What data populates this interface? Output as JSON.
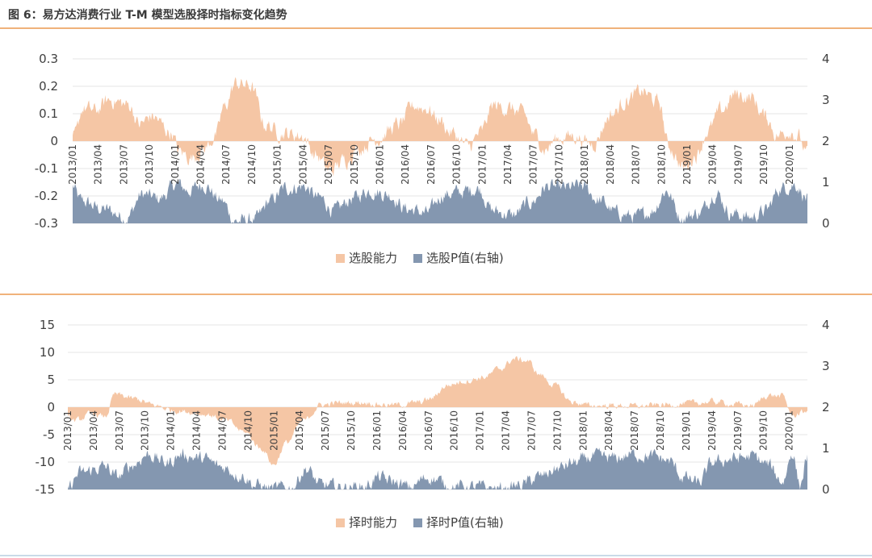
{
  "header": {
    "title": "图 6：易方达消费行业 T-M 模型选股择时指标变化趋势"
  },
  "colors": {
    "ability": "#f5c6a5",
    "pvalue": "#8497b0",
    "accent_line": "#f0b27a"
  },
  "chart_data": [
    {
      "type": "area",
      "left_axis": {
        "min": -0.3,
        "max": 0.3,
        "ticks": [
          "0.3",
          "0.2",
          "0.1",
          "0",
          "-0.1",
          "-0.2",
          "-0.3"
        ]
      },
      "right_axis": {
        "min": 0,
        "max": 4,
        "ticks": [
          "4",
          "3",
          "2",
          "1",
          "0"
        ]
      },
      "x_ticks": [
        "2013/01",
        "2013/04",
        "2013/07",
        "2013/10",
        "2014/01",
        "2014/04",
        "2014/07",
        "2014/10",
        "2015/01",
        "2015/04",
        "2015/07",
        "2015/10",
        "2016/01",
        "2016/04",
        "2016/07",
        "2016/10",
        "2017/01",
        "2017/04",
        "2017/07",
        "2017/10",
        "2018/01",
        "2018/04",
        "2018/07",
        "2018/10",
        "2019/01",
        "2019/04",
        "2019/07",
        "2019/10",
        "2020/01"
      ],
      "legend": [
        "选股能力",
        "选股P值(右轴)"
      ],
      "legend_position": "bottom",
      "ability_series": {
        "name": "选股能力",
        "keypoints": [
          [
            0,
            0
          ],
          [
            0.1,
            0.02
          ],
          [
            0.4,
            0.12
          ],
          [
            0.9,
            0.11
          ],
          [
            1.5,
            0.15
          ],
          [
            2.3,
            0.13
          ],
          [
            2.7,
            0.06
          ],
          [
            3.2,
            0.09
          ],
          [
            4.0,
            0.03
          ],
          [
            4.3,
            -0.04
          ],
          [
            4.8,
            -0.06
          ],
          [
            5.3,
            -0.03
          ],
          [
            5.8,
            0.02
          ],
          [
            6.1,
            0.12
          ],
          [
            6.6,
            0.21
          ],
          [
            7.2,
            0.2
          ],
          [
            7.8,
            0.06
          ],
          [
            8.4,
            0.03
          ],
          [
            9.3,
            0.02
          ],
          [
            9.8,
            -0.05
          ],
          [
            10.4,
            -0.11
          ],
          [
            11.0,
            -0.07
          ],
          [
            11.5,
            -0.03
          ],
          [
            12.3,
            0.01
          ],
          [
            13.2,
            0.06
          ],
          [
            13.8,
            0.13
          ],
          [
            14.3,
            0.12
          ],
          [
            14.8,
            0.08
          ],
          [
            15.3,
            0.03
          ],
          [
            16.0,
            -0.02
          ],
          [
            16.5,
            0.03
          ],
          [
            17.0,
            0.13
          ],
          [
            17.6,
            0.12
          ],
          [
            18.2,
            0.1
          ],
          [
            18.7,
            0.02
          ],
          [
            19.1,
            -0.03
          ],
          [
            19.6,
            0.01
          ],
          [
            20.2,
            0.02
          ],
          [
            21.0,
            -0.01
          ],
          [
            21.8,
            0.1
          ],
          [
            22.4,
            0.15
          ],
          [
            23.0,
            0.18
          ],
          [
            23.7,
            0.14
          ],
          [
            24.1,
            -0.02
          ],
          [
            24.7,
            -0.1
          ],
          [
            25.2,
            -0.05
          ],
          [
            25.7,
            0.04
          ],
          [
            26.2,
            0.11
          ],
          [
            26.8,
            0.17
          ],
          [
            27.4,
            0.16
          ],
          [
            28.0,
            0.09
          ],
          [
            28.5,
            0.02
          ],
          [
            29.0,
            0.04
          ],
          [
            29.3,
            0.02
          ],
          [
            29.7,
            -0.05
          ]
        ],
        "unit": "left"
      },
      "pvalue_series": {
        "name": "选股P值(右轴)",
        "keypoints": [
          [
            0,
            0.9
          ],
          [
            0.3,
            0.55
          ],
          [
            1.2,
            0.35
          ],
          [
            2.2,
            0.15
          ],
          [
            2.8,
            0.7
          ],
          [
            3.5,
            0.6
          ],
          [
            4.2,
            0.95
          ],
          [
            4.7,
            0.8
          ],
          [
            5.3,
            0.95
          ],
          [
            6.0,
            0.55
          ],
          [
            6.6,
            0.05
          ],
          [
            7.4,
            0.1
          ],
          [
            8.0,
            0.55
          ],
          [
            8.6,
            0.85
          ],
          [
            9.3,
            0.9
          ],
          [
            10.0,
            0.6
          ],
          [
            10.6,
            0.3
          ],
          [
            11.3,
            0.6
          ],
          [
            12.0,
            0.8
          ],
          [
            12.8,
            0.7
          ],
          [
            13.5,
            0.35
          ],
          [
            14.3,
            0.25
          ],
          [
            15.0,
            0.7
          ],
          [
            15.6,
            0.75
          ],
          [
            16.4,
            0.85
          ],
          [
            17.0,
            0.3
          ],
          [
            17.8,
            0.2
          ],
          [
            18.5,
            0.5
          ],
          [
            19.2,
            0.9
          ],
          [
            19.8,
            0.85
          ],
          [
            20.6,
            0.9
          ],
          [
            21.3,
            0.55
          ],
          [
            22.0,
            0.25
          ],
          [
            22.8,
            0.15
          ],
          [
            23.4,
            0.3
          ],
          [
            24.0,
            0.8
          ],
          [
            24.6,
            0.15
          ],
          [
            25.3,
            0.25
          ],
          [
            26.0,
            0.75
          ],
          [
            26.6,
            0.25
          ],
          [
            27.4,
            0.15
          ],
          [
            28.0,
            0.3
          ],
          [
            28.6,
            0.85
          ],
          [
            29.2,
            0.95
          ],
          [
            29.7,
            0.6
          ]
        ],
        "unit": "right"
      }
    },
    {
      "type": "area",
      "left_axis": {
        "min": -15,
        "max": 15,
        "ticks": [
          "15",
          "10",
          "5",
          "0",
          "-5",
          "-10",
          "-15"
        ]
      },
      "right_axis": {
        "min": 0,
        "max": 4,
        "ticks": [
          "4",
          "3",
          "2",
          "1",
          "0"
        ]
      },
      "x_ticks": [
        "2013/01",
        "2013/04",
        "2013/07",
        "2013/10",
        "2014/01",
        "2014/04",
        "2014/07",
        "2014/10",
        "2015/01",
        "2015/04",
        "2015/07",
        "2015/10",
        "2016/01",
        "2016/04",
        "2016/07",
        "2016/10",
        "2017/01",
        "2017/04",
        "2017/07",
        "2017/10",
        "2018/01",
        "2018/04",
        "2018/07",
        "2018/10",
        "2019/01",
        "2019/04",
        "2019/07",
        "2019/10",
        "2020/01"
      ],
      "legend": [
        "择时能力",
        "择时P值(右轴)"
      ],
      "legend_position": "bottom",
      "ability_series": {
        "name": "择时能力",
        "keypoints": [
          [
            0,
            -2
          ],
          [
            0.3,
            -2.5
          ],
          [
            1.0,
            -1.2
          ],
          [
            1.5,
            -1.8
          ],
          [
            1.9,
            2.3
          ],
          [
            2.7,
            1.5
          ],
          [
            3.5,
            0.3
          ],
          [
            4.2,
            -0.5
          ],
          [
            4.8,
            -0.8
          ],
          [
            5.6,
            -1.3
          ],
          [
            6.4,
            -2.5
          ],
          [
            7.1,
            -4.5
          ],
          [
            7.8,
            -7.5
          ],
          [
            8.3,
            -10.5
          ],
          [
            8.8,
            -6.5
          ],
          [
            9.5,
            -2.5
          ],
          [
            10.2,
            0.4
          ],
          [
            11.0,
            0.8
          ],
          [
            12.0,
            0.9
          ],
          [
            12.6,
            0.5
          ],
          [
            13.2,
            0.4
          ],
          [
            14.1,
            0.8
          ],
          [
            14.6,
            1.5
          ],
          [
            15.3,
            4.0
          ],
          [
            16.0,
            4.8
          ],
          [
            16.8,
            5.5
          ],
          [
            17.4,
            7.0
          ],
          [
            18.0,
            8.8
          ],
          [
            18.5,
            8.5
          ],
          [
            19.0,
            6.0
          ],
          [
            19.6,
            4.0
          ],
          [
            20.3,
            1.0
          ],
          [
            21.0,
            0.3
          ],
          [
            22.0,
            0.3
          ],
          [
            23.0,
            0.2
          ],
          [
            24.0,
            0.4
          ],
          [
            25.0,
            0.7
          ],
          [
            26.0,
            1.0
          ],
          [
            27.0,
            0.5
          ],
          [
            27.6,
            0.3
          ],
          [
            28.2,
            2.2
          ],
          [
            28.8,
            2.0
          ],
          [
            29.2,
            -1.5
          ],
          [
            29.6,
            -1.0
          ],
          [
            29.8,
            -0.5
          ]
        ],
        "unit": "left"
      },
      "pvalue_series": {
        "name": "择时P值(右轴)",
        "keypoints": [
          [
            0,
            0.05
          ],
          [
            0.5,
            0.4
          ],
          [
            1.5,
            0.55
          ],
          [
            2.0,
            0.3
          ],
          [
            2.6,
            0.6
          ],
          [
            3.2,
            0.85
          ],
          [
            4.0,
            0.65
          ],
          [
            4.6,
            0.85
          ],
          [
            5.4,
            0.75
          ],
          [
            6.2,
            0.55
          ],
          [
            7.0,
            0.35
          ],
          [
            7.6,
            0.1
          ],
          [
            8.3,
            0.02
          ],
          [
            9.0,
            0.05
          ],
          [
            9.6,
            0.5
          ],
          [
            10.2,
            0.1
          ],
          [
            11.0,
            0.05
          ],
          [
            12.0,
            0.08
          ],
          [
            12.5,
            0.3
          ],
          [
            13.0,
            0.2
          ],
          [
            13.8,
            0.05
          ],
          [
            14.5,
            0.3
          ],
          [
            15.5,
            0.08
          ],
          [
            16.5,
            0.05
          ],
          [
            17.5,
            0.02
          ],
          [
            18.2,
            0.1
          ],
          [
            19.0,
            0.3
          ],
          [
            19.7,
            0.5
          ],
          [
            20.4,
            0.65
          ],
          [
            21.2,
            0.8
          ],
          [
            22.0,
            0.75
          ],
          [
            22.8,
            0.85
          ],
          [
            23.6,
            0.8
          ],
          [
            24.2,
            0.7
          ],
          [
            24.8,
            0.3
          ],
          [
            25.4,
            0.15
          ],
          [
            26.0,
            0.65
          ],
          [
            26.8,
            0.75
          ],
          [
            27.6,
            0.8
          ],
          [
            28.2,
            0.6
          ],
          [
            28.8,
            0.2
          ],
          [
            29.2,
            0.9
          ],
          [
            29.5,
            0.1
          ],
          [
            29.8,
            0.8
          ]
        ],
        "unit": "right"
      }
    }
  ]
}
